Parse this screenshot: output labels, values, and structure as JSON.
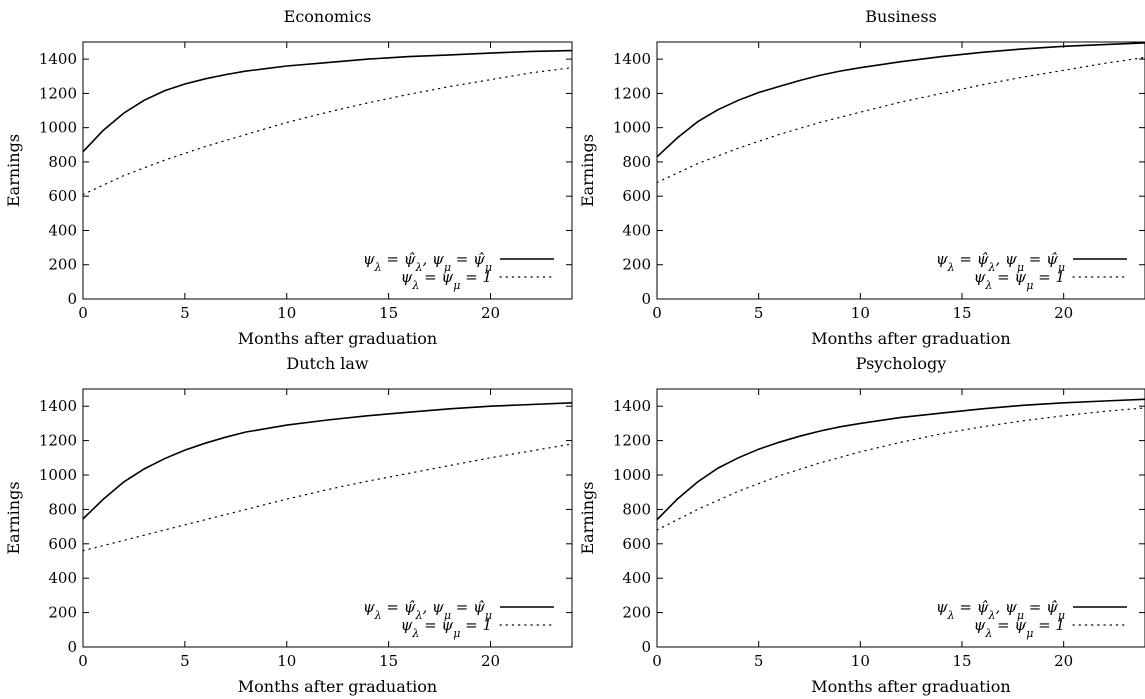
{
  "chart_data": [
    {
      "type": "line",
      "title": "Economics",
      "xlabel": "Months after graduation",
      "ylabel": "Earnings",
      "xlim": [
        0,
        24
      ],
      "ylim": [
        0,
        1500
      ],
      "xticks": [
        "0",
        "5",
        "10",
        "15",
        "20"
      ],
      "yticks": [
        "0",
        "200",
        "400",
        "600",
        "800",
        "1000",
        "1200",
        "1400"
      ],
      "legend_position": "bottom-right",
      "series": [
        {
          "name": "ψλ = ψ̂λ, ψμ = ψ̂μ",
          "style": "solid",
          "x": [
            0,
            1,
            2,
            3,
            4,
            5,
            6,
            7,
            8,
            9,
            10,
            12,
            14,
            16,
            18,
            20,
            22,
            24
          ],
          "y": [
            860,
            985,
            1085,
            1160,
            1215,
            1255,
            1285,
            1310,
            1330,
            1345,
            1360,
            1380,
            1400,
            1415,
            1425,
            1435,
            1445,
            1450
          ]
        },
        {
          "name": "ψλ = ψμ = 1",
          "style": "dotted",
          "x": [
            0,
            2,
            4,
            6,
            8,
            10,
            12,
            14,
            16,
            18,
            20,
            22,
            24
          ],
          "y": [
            610,
            720,
            810,
            890,
            960,
            1030,
            1090,
            1145,
            1195,
            1240,
            1280,
            1320,
            1350
          ]
        }
      ]
    },
    {
      "type": "line",
      "title": "Business",
      "xlabel": "Months after graduation",
      "ylabel": "Earnings",
      "xlim": [
        0,
        24
      ],
      "ylim": [
        0,
        1500
      ],
      "xticks": [
        "0",
        "5",
        "10",
        "15",
        "20"
      ],
      "yticks": [
        "0",
        "200",
        "400",
        "600",
        "800",
        "1000",
        "1200",
        "1400"
      ],
      "legend_position": "bottom-right",
      "series": [
        {
          "name": "ψλ = ψ̂λ, ψμ = ψ̂μ",
          "style": "solid",
          "x": [
            0,
            1,
            2,
            3,
            4,
            5,
            6,
            7,
            8,
            9,
            10,
            12,
            14,
            16,
            18,
            20,
            22,
            24
          ],
          "y": [
            830,
            940,
            1035,
            1105,
            1160,
            1205,
            1240,
            1275,
            1305,
            1330,
            1350,
            1385,
            1415,
            1440,
            1460,
            1475,
            1485,
            1495
          ]
        },
        {
          "name": "ψλ = ψμ = 1",
          "style": "dotted",
          "x": [
            0,
            2,
            4,
            6,
            8,
            10,
            12,
            14,
            16,
            18,
            20,
            22,
            24
          ],
          "y": [
            680,
            790,
            880,
            960,
            1030,
            1090,
            1150,
            1200,
            1250,
            1295,
            1335,
            1375,
            1410
          ]
        }
      ]
    },
    {
      "type": "line",
      "title": "Dutch law",
      "xlabel": "Months after graduation",
      "ylabel": "Earnings",
      "xlim": [
        0,
        24
      ],
      "ylim": [
        0,
        1500
      ],
      "xticks": [
        "0",
        "5",
        "10",
        "15",
        "20"
      ],
      "yticks": [
        "0",
        "200",
        "400",
        "600",
        "800",
        "1000",
        "1200",
        "1400"
      ],
      "legend_position": "bottom-right",
      "series": [
        {
          "name": "ψλ = ψ̂λ, ψμ = ψ̂μ",
          "style": "solid",
          "x": [
            0,
            1,
            2,
            3,
            4,
            5,
            6,
            7,
            8,
            9,
            10,
            12,
            14,
            16,
            18,
            20,
            22,
            24
          ],
          "y": [
            745,
            860,
            960,
            1035,
            1095,
            1145,
            1185,
            1220,
            1250,
            1270,
            1290,
            1320,
            1345,
            1365,
            1385,
            1400,
            1410,
            1420
          ]
        },
        {
          "name": "ψλ = ψμ = 1",
          "style": "dotted",
          "x": [
            0,
            2,
            4,
            6,
            8,
            10,
            12,
            14,
            16,
            18,
            20,
            22,
            24
          ],
          "y": [
            560,
            620,
            680,
            740,
            800,
            860,
            915,
            965,
            1010,
            1055,
            1100,
            1140,
            1180
          ]
        }
      ]
    },
    {
      "type": "line",
      "title": "Psychology",
      "xlabel": "Months after graduation",
      "ylabel": "Earnings",
      "xlim": [
        0,
        24
      ],
      "ylim": [
        0,
        1500
      ],
      "xticks": [
        "0",
        "5",
        "10",
        "15",
        "20"
      ],
      "yticks": [
        "0",
        "200",
        "400",
        "600",
        "800",
        "1000",
        "1200",
        "1400"
      ],
      "legend_position": "bottom-right",
      "series": [
        {
          "name": "ψλ = ψ̂λ, ψμ = ψ̂μ",
          "style": "solid",
          "x": [
            0,
            1,
            2,
            3,
            4,
            5,
            6,
            7,
            8,
            9,
            10,
            12,
            14,
            16,
            18,
            20,
            22,
            24
          ],
          "y": [
            740,
            860,
            960,
            1040,
            1100,
            1150,
            1190,
            1225,
            1255,
            1280,
            1300,
            1335,
            1360,
            1385,
            1405,
            1420,
            1430,
            1440
          ]
        },
        {
          "name": "ψλ = ψμ = 1",
          "style": "dotted",
          "x": [
            0,
            2,
            4,
            6,
            8,
            10,
            12,
            14,
            16,
            18,
            20,
            22,
            24
          ],
          "y": [
            680,
            800,
            905,
            995,
            1070,
            1135,
            1190,
            1240,
            1280,
            1315,
            1345,
            1370,
            1390
          ]
        }
      ]
    }
  ],
  "legend_labels": {
    "fitted": {
      "psi_l": "ψ",
      "sub_l": "λ",
      "eq": " = ",
      "hat_l": "ψ̂",
      "sep": ", ",
      "psi_m": "ψ",
      "sub_m": "μ",
      "hat_m": "ψ̂"
    },
    "unit": {
      "text": " = 1"
    }
  }
}
